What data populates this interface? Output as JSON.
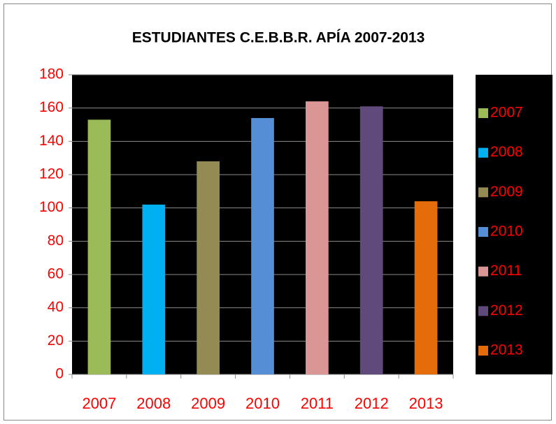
{
  "chart_data": {
    "type": "bar",
    "title": "ESTUDIANTES  C.E.B.B.R. APÍA  2007-2013",
    "categories": [
      "2007",
      "2008",
      "2009",
      "2010",
      "2011",
      "2012",
      "2013"
    ],
    "values": [
      153,
      102,
      128,
      154,
      164,
      161,
      104
    ],
    "colors": [
      "#9bbb59",
      "#00b0f0",
      "#948a54",
      "#558ed5",
      "#d99694",
      "#604a7b",
      "#e46c0a"
    ],
    "ylim": [
      0,
      180
    ],
    "yticks": [
      0,
      20,
      40,
      60,
      80,
      100,
      120,
      140,
      160,
      180
    ],
    "grid": true,
    "legend": "right"
  }
}
